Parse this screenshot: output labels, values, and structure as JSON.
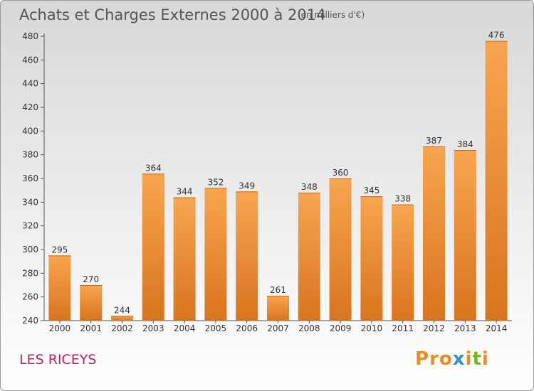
{
  "header": {
    "title": "Achats et Charges Externes 2000 à 2014",
    "unit": "(en milliers d'€)"
  },
  "footer": {
    "commune": "LES RICEYS",
    "logo_text": "Proxiti"
  },
  "colors": {
    "bar_top": "#f7a54f",
    "bar_bottom": "#d9741e",
    "axis": "#555555",
    "commune": "#c0235a",
    "logo_letters": [
      "#f08a20",
      "#f08a20",
      "#f08a20",
      "#2f8fd8",
      "#f08a20",
      "#7ab51d",
      "#f08a20"
    ]
  },
  "chart_data": {
    "type": "bar",
    "title": "Achats et Charges Externes 2000 à 2014",
    "xlabel": "",
    "ylabel": "",
    "categories": [
      "2000",
      "2001",
      "2002",
      "2003",
      "2004",
      "2005",
      "2006",
      "2007",
      "2008",
      "2009",
      "2010",
      "2011",
      "2012",
      "2013",
      "2014"
    ],
    "values": [
      295,
      270,
      244,
      364,
      344,
      352,
      349,
      261,
      348,
      360,
      345,
      338,
      387,
      384,
      476
    ],
    "ylim": [
      240,
      480
    ],
    "yticks": [
      240,
      260,
      280,
      300,
      320,
      340,
      360,
      380,
      400,
      420,
      440,
      460,
      480
    ],
    "grid": false,
    "data_labels": true
  }
}
